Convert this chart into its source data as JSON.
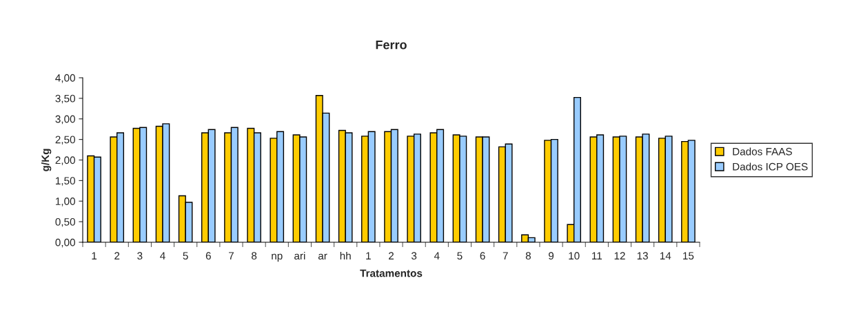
{
  "chart_data": {
    "type": "bar",
    "title": "Ferro",
    "xlabel": "Tratamentos",
    "ylabel": "g/Kg",
    "categories": [
      "1",
      "2",
      "3",
      "4",
      "5",
      "6",
      "7",
      "8",
      "np",
      "ari",
      "ar",
      "hh",
      "1",
      "2",
      "3",
      "4",
      "5",
      "6",
      "7",
      "8",
      "9",
      "10",
      "11",
      "12",
      "13",
      "14",
      "15"
    ],
    "series": [
      {
        "name": "Dados FAAS",
        "color": "#ffcc00",
        "values": [
          2.1,
          2.56,
          2.77,
          2.82,
          1.13,
          2.66,
          2.66,
          2.77,
          2.53,
          2.61,
          3.57,
          2.72,
          2.58,
          2.69,
          2.58,
          2.66,
          2.61,
          2.56,
          2.32,
          0.18,
          2.48,
          0.43,
          2.56,
          2.56,
          2.56,
          2.53,
          2.45
        ]
      },
      {
        "name": "Dados ICP OES",
        "color": "#99ccff",
        "values": [
          2.07,
          2.66,
          2.79,
          2.88,
          0.97,
          2.74,
          2.79,
          2.66,
          2.69,
          2.56,
          3.14,
          2.66,
          2.69,
          2.74,
          2.63,
          2.74,
          2.58,
          2.56,
          2.39,
          0.11,
          2.5,
          3.52,
          2.61,
          2.58,
          2.63,
          2.58,
          2.48
        ]
      }
    ],
    "ylim": [
      0,
      4
    ],
    "yticks": [
      {
        "value": 0,
        "label": "0,00"
      },
      {
        "value": 0.5,
        "label": "0,50"
      },
      {
        "value": 1,
        "label": "1,00"
      },
      {
        "value": 1.5,
        "label": "1,50"
      },
      {
        "value": 2,
        "label": "2,00"
      },
      {
        "value": 2.5,
        "label": "2,50"
      },
      {
        "value": 3,
        "label": "3,00"
      },
      {
        "value": 3.5,
        "label": "3,50"
      },
      {
        "value": 4,
        "label": "4,00"
      }
    ],
    "grid": false,
    "legend": "right"
  }
}
